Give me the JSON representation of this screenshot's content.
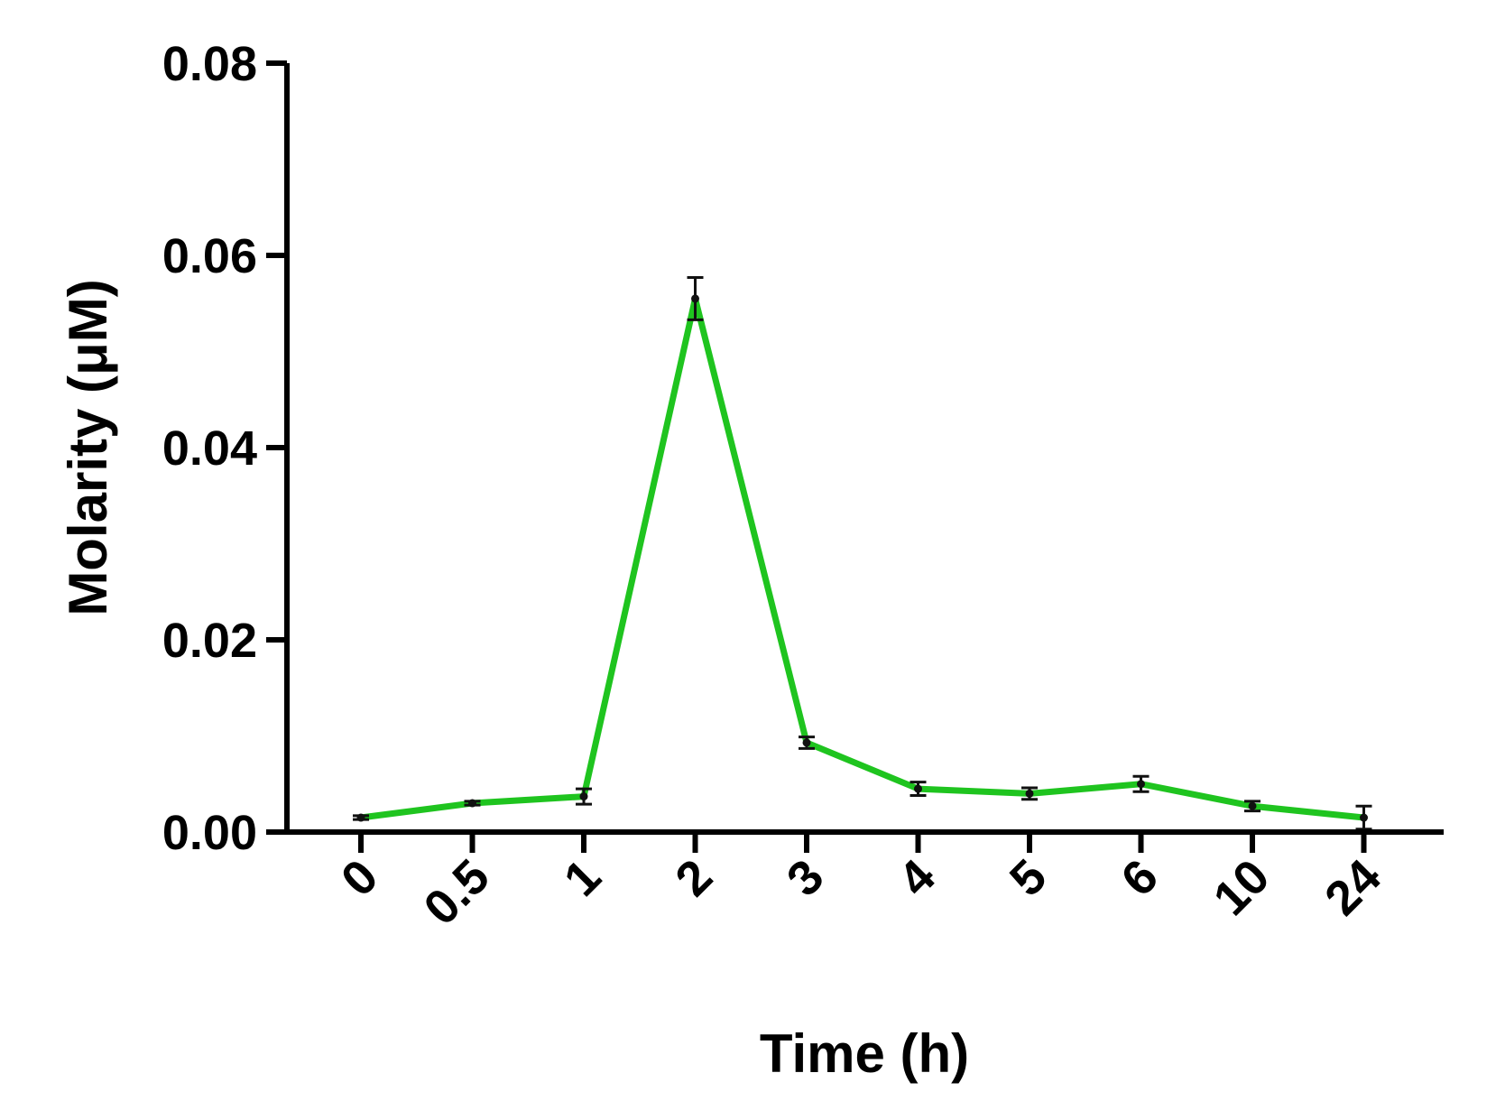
{
  "chart_data": {
    "type": "line",
    "xlabel": "Time (h)",
    "ylabel": "Molarity (μM)",
    "ylim": [
      0,
      0.08
    ],
    "yticks": [
      "0.00",
      "0.02",
      "0.04",
      "0.06",
      "0.08"
    ],
    "categories": [
      "0",
      "0.5",
      "1",
      "2",
      "3",
      "4",
      "5",
      "6",
      "10",
      "24"
    ],
    "series": [
      {
        "values": [
          0.0015,
          0.003,
          0.0037,
          0.0555,
          0.0093,
          0.0045,
          0.004,
          0.005,
          0.0027,
          0.0015
        ],
        "errors": [
          0.0002,
          0.0002,
          0.0008,
          0.0022,
          0.0006,
          0.0007,
          0.0006,
          0.0008,
          0.0005,
          0.0012
        ]
      }
    ],
    "line_color": "#1fc41f",
    "grid": false,
    "legend": "none"
  }
}
